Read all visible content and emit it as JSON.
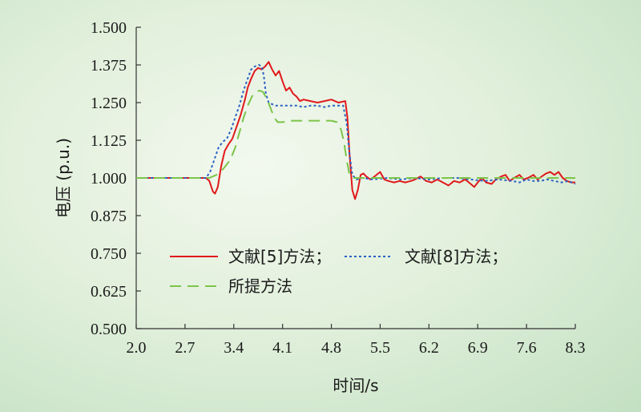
{
  "chart_data": {
    "type": "line",
    "xlabel": "时间/s",
    "ylabel": "电压 (p.u.)",
    "xlim": [
      2.0,
      8.3
    ],
    "ylim": [
      0.5,
      1.5
    ],
    "x_ticks": [
      "2.0",
      "2.7",
      "3.4",
      "4.1",
      "4.8",
      "5.5",
      "6.2",
      "6.9",
      "7.6",
      "8.3"
    ],
    "y_ticks": [
      "0.500",
      "0.625",
      "0.750",
      "0.875",
      "1.000",
      "1.125",
      "1.250",
      "1.375",
      "1.500"
    ],
    "grid": false,
    "legend_placement": "center-left",
    "series": [
      {
        "name": "文献[5]方法；",
        "color": "#e0191b",
        "dash": "solid",
        "points": [
          [
            2.0,
            1.0
          ],
          [
            3.0,
            1.0
          ],
          [
            3.05,
            0.99
          ],
          [
            3.1,
            0.955
          ],
          [
            3.13,
            0.948
          ],
          [
            3.17,
            0.97
          ],
          [
            3.22,
            1.04
          ],
          [
            3.27,
            1.09
          ],
          [
            3.32,
            1.11
          ],
          [
            3.38,
            1.13
          ],
          [
            3.44,
            1.17
          ],
          [
            3.5,
            1.21
          ],
          [
            3.56,
            1.26
          ],
          [
            3.6,
            1.3
          ],
          [
            3.65,
            1.33
          ],
          [
            3.7,
            1.355
          ],
          [
            3.75,
            1.365
          ],
          [
            3.8,
            1.36
          ],
          [
            3.85,
            1.37
          ],
          [
            3.9,
            1.385
          ],
          [
            3.95,
            1.36
          ],
          [
            4.0,
            1.34
          ],
          [
            4.05,
            1.355
          ],
          [
            4.1,
            1.32
          ],
          [
            4.15,
            1.29
          ],
          [
            4.2,
            1.3
          ],
          [
            4.25,
            1.28
          ],
          [
            4.3,
            1.27
          ],
          [
            4.35,
            1.255
          ],
          [
            4.4,
            1.26
          ],
          [
            4.5,
            1.255
          ],
          [
            4.6,
            1.25
          ],
          [
            4.7,
            1.255
          ],
          [
            4.8,
            1.26
          ],
          [
            4.9,
            1.25
          ],
          [
            5.0,
            1.255
          ],
          [
            5.03,
            1.2
          ],
          [
            5.06,
            1.08
          ],
          [
            5.1,
            0.96
          ],
          [
            5.14,
            0.93
          ],
          [
            5.18,
            0.96
          ],
          [
            5.22,
            1.01
          ],
          [
            5.26,
            1.015
          ],
          [
            5.3,
            1.005
          ],
          [
            5.36,
            0.995
          ],
          [
            5.42,
            1.005
          ],
          [
            5.5,
            1.02
          ],
          [
            5.56,
            0.995
          ],
          [
            5.62,
            0.99
          ],
          [
            5.7,
            0.985
          ],
          [
            5.78,
            0.99
          ],
          [
            5.86,
            0.985
          ],
          [
            5.94,
            0.99
          ],
          [
            6.0,
            0.995
          ],
          [
            6.08,
            1.005
          ],
          [
            6.16,
            0.99
          ],
          [
            6.24,
            0.985
          ],
          [
            6.32,
            0.995
          ],
          [
            6.4,
            0.985
          ],
          [
            6.48,
            0.975
          ],
          [
            6.56,
            0.99
          ],
          [
            6.64,
            0.985
          ],
          [
            6.72,
            0.995
          ],
          [
            6.8,
            0.98
          ],
          [
            6.85,
            0.97
          ],
          [
            6.9,
            0.985
          ],
          [
            6.96,
            1.0
          ],
          [
            7.02,
            0.985
          ],
          [
            7.1,
            0.98
          ],
          [
            7.16,
            0.995
          ],
          [
            7.24,
            1.005
          ],
          [
            7.3,
            1.01
          ],
          [
            7.36,
            0.99
          ],
          [
            7.42,
            1.0
          ],
          [
            7.5,
            1.01
          ],
          [
            7.56,
            0.995
          ],
          [
            7.62,
            1.0
          ],
          [
            7.7,
            1.01
          ],
          [
            7.76,
            0.995
          ],
          [
            7.82,
            1.005
          ],
          [
            7.88,
            1.015
          ],
          [
            7.94,
            1.02
          ],
          [
            8.0,
            1.01
          ],
          [
            8.06,
            1.02
          ],
          [
            8.12,
            1.0
          ],
          [
            8.18,
            0.99
          ],
          [
            8.24,
            0.985
          ],
          [
            8.3,
            0.985
          ]
        ]
      },
      {
        "name": "文献[8]方法；",
        "color": "#2a62c4",
        "dash": "dotted",
        "points": [
          [
            2.0,
            1.0
          ],
          [
            3.0,
            1.0
          ],
          [
            3.06,
            1.02
          ],
          [
            3.12,
            1.06
          ],
          [
            3.18,
            1.1
          ],
          [
            3.24,
            1.12
          ],
          [
            3.3,
            1.13
          ],
          [
            3.36,
            1.16
          ],
          [
            3.42,
            1.2
          ],
          [
            3.48,
            1.24
          ],
          [
            3.54,
            1.29
          ],
          [
            3.6,
            1.33
          ],
          [
            3.65,
            1.36
          ],
          [
            3.7,
            1.37
          ],
          [
            3.76,
            1.375
          ],
          [
            3.8,
            1.37
          ],
          [
            3.83,
            1.34
          ],
          [
            3.86,
            1.28
          ],
          [
            3.9,
            1.25
          ],
          [
            3.95,
            1.245
          ],
          [
            4.0,
            1.24
          ],
          [
            4.1,
            1.24
          ],
          [
            4.2,
            1.24
          ],
          [
            4.3,
            1.24
          ],
          [
            4.4,
            1.235
          ],
          [
            4.5,
            1.24
          ],
          [
            4.6,
            1.24
          ],
          [
            4.7,
            1.235
          ],
          [
            4.8,
            1.24
          ],
          [
            4.9,
            1.24
          ],
          [
            4.97,
            1.24
          ],
          [
            5.02,
            1.18
          ],
          [
            5.06,
            1.08
          ],
          [
            5.1,
            1.01
          ],
          [
            5.16,
            0.995
          ],
          [
            5.24,
            1.0
          ],
          [
            5.4,
            0.995
          ],
          [
            5.6,
            1.0
          ],
          [
            5.8,
            0.995
          ],
          [
            6.0,
            1.0
          ],
          [
            6.2,
            0.995
          ],
          [
            6.4,
            1.0
          ],
          [
            6.6,
            1.0
          ],
          [
            6.8,
            0.995
          ],
          [
            7.0,
            0.99
          ],
          [
            7.2,
            0.995
          ],
          [
            7.4,
            0.99
          ],
          [
            7.5,
            0.985
          ],
          [
            7.6,
            0.995
          ],
          [
            7.7,
            0.99
          ],
          [
            7.8,
            0.99
          ],
          [
            7.9,
            0.995
          ],
          [
            8.0,
            0.99
          ],
          [
            8.1,
            0.985
          ],
          [
            8.2,
            0.99
          ],
          [
            8.3,
            0.98
          ]
        ]
      },
      {
        "name": "所提方法",
        "color": "#7cc44a",
        "dash": "dashed",
        "points": [
          [
            2.0,
            1.0
          ],
          [
            3.05,
            1.0
          ],
          [
            3.15,
            1.01
          ],
          [
            3.25,
            1.03
          ],
          [
            3.35,
            1.06
          ],
          [
            3.42,
            1.1
          ],
          [
            3.48,
            1.15
          ],
          [
            3.54,
            1.2
          ],
          [
            3.6,
            1.24
          ],
          [
            3.66,
            1.27
          ],
          [
            3.72,
            1.285
          ],
          [
            3.77,
            1.29
          ],
          [
            3.82,
            1.285
          ],
          [
            3.88,
            1.26
          ],
          [
            3.93,
            1.23
          ],
          [
            3.98,
            1.2
          ],
          [
            4.03,
            1.185
          ],
          [
            4.1,
            1.185
          ],
          [
            4.2,
            1.19
          ],
          [
            4.3,
            1.19
          ],
          [
            4.4,
            1.19
          ],
          [
            4.5,
            1.19
          ],
          [
            4.6,
            1.19
          ],
          [
            4.7,
            1.19
          ],
          [
            4.8,
            1.19
          ],
          [
            4.88,
            1.185
          ],
          [
            4.94,
            1.16
          ],
          [
            4.98,
            1.12
          ],
          [
            5.02,
            1.06
          ],
          [
            5.06,
            1.01
          ],
          [
            5.12,
            1.0
          ],
          [
            5.3,
            1.0
          ],
          [
            5.6,
            1.0
          ],
          [
            6.0,
            1.0
          ],
          [
            6.5,
            1.0
          ],
          [
            7.0,
            1.0
          ],
          [
            7.5,
            1.0
          ],
          [
            8.0,
            1.0
          ],
          [
            8.3,
            1.0
          ]
        ]
      }
    ]
  }
}
